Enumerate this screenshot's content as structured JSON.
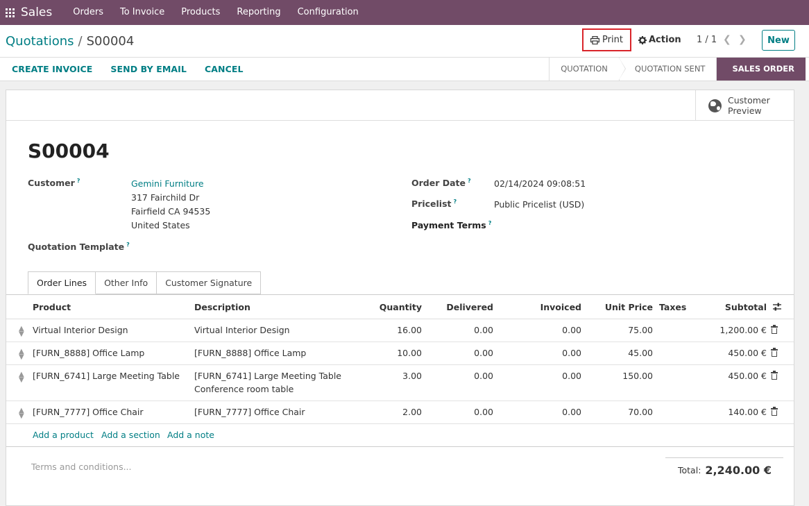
{
  "nav": {
    "brand": "Sales",
    "items": [
      "Orders",
      "To Invoice",
      "Products",
      "Reporting",
      "Configuration"
    ]
  },
  "breadcrumb": {
    "parent": "Quotations",
    "separator": "/",
    "current": "S00004"
  },
  "toolbar": {
    "print": "Print",
    "action": "Action",
    "pager": "1 / 1",
    "new": "New"
  },
  "actions": [
    "CREATE INVOICE",
    "SEND BY EMAIL",
    "CANCEL"
  ],
  "status": {
    "stages": [
      "QUOTATION",
      "QUOTATION SENT",
      "SALES ORDER"
    ],
    "active": "SALES ORDER"
  },
  "button_box": {
    "preview_line1": "Customer",
    "preview_line2": "Preview"
  },
  "form": {
    "title": "S00004",
    "customer_label": "Customer",
    "customer_name": "Gemini Furniture",
    "customer_addr1": "317 Fairchild Dr",
    "customer_addr2": "Fairfield CA 94535",
    "customer_addr3": "United States",
    "template_label": "Quotation Template",
    "order_date_label": "Order Date",
    "order_date": "02/14/2024 09:08:51",
    "pricelist_label": "Pricelist",
    "pricelist": "Public Pricelist (USD)",
    "payment_terms_label": "Payment Terms",
    "tooltip_mark": "?"
  },
  "tabs": [
    "Order Lines",
    "Other Info",
    "Customer Signature"
  ],
  "table": {
    "headers": {
      "product": "Product",
      "description": "Description",
      "quantity": "Quantity",
      "delivered": "Delivered",
      "invoiced": "Invoiced",
      "unit_price": "Unit Price",
      "taxes": "Taxes",
      "subtotal": "Subtotal"
    },
    "rows": [
      {
        "product": "Virtual Interior Design",
        "desc1": "Virtual Interior Design",
        "desc2": "",
        "qty": "16.00",
        "delivered": "0.00",
        "invoiced": "0.00",
        "price": "75.00",
        "subtotal": "1,200.00 €"
      },
      {
        "product": "[FURN_8888] Office Lamp",
        "desc1": "[FURN_8888] Office Lamp",
        "desc2": "",
        "qty": "10.00",
        "delivered": "0.00",
        "invoiced": "0.00",
        "price": "45.00",
        "subtotal": "450.00 €"
      },
      {
        "product": "[FURN_6741] Large Meeting Table",
        "desc1": "[FURN_6741] Large Meeting Table",
        "desc2": "Conference room table",
        "qty": "3.00",
        "delivered": "0.00",
        "invoiced": "0.00",
        "price": "150.00",
        "subtotal": "450.00 €"
      },
      {
        "product": "[FURN_7777] Office Chair",
        "desc1": "[FURN_7777] Office Chair",
        "desc2": "",
        "qty": "2.00",
        "delivered": "0.00",
        "invoiced": "0.00",
        "price": "70.00",
        "subtotal": "140.00 €"
      }
    ],
    "add_product": "Add a product",
    "add_section": "Add a section",
    "add_note": "Add a note"
  },
  "footer": {
    "terms_placeholder": "Terms and conditions...",
    "total_label": "Total:",
    "total_value": "2,240.00 €"
  },
  "colors": {
    "brand": "#714b67",
    "accent": "#017e84",
    "highlight": "#d9242a"
  }
}
